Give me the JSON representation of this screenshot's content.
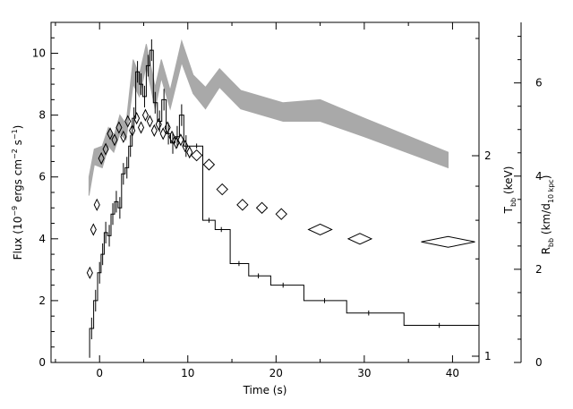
{
  "chart_data": {
    "type": "line",
    "title": "",
    "xlabel": "Time (s)",
    "xlim": [
      -5.5,
      43
    ],
    "x_ticks": [
      0,
      10,
      20,
      30,
      40
    ],
    "y_left": {
      "label_parts": [
        "Flux (10",
        "−9",
        " ergs cm",
        "−2",
        " s",
        "−1",
        ")"
      ],
      "lim": [
        0,
        11
      ],
      "ticks": [
        0,
        2,
        4,
        6,
        8,
        10
      ]
    },
    "y_mid": {
      "label_main": "T",
      "label_sub": "bb",
      "label_rest": " (keV)",
      "scale": "log",
      "ticks": [
        1,
        2
      ],
      "tick_labels": [
        "1",
        "2"
      ]
    },
    "y_right": {
      "label_main": "R",
      "label_sub": "bb",
      "label_rest1": " (km/d",
      "label_sub2": "10 kpc",
      "label_rest2": ")",
      "lim": [
        0,
        7.3
      ],
      "ticks": [
        0,
        2,
        4,
        6
      ]
    },
    "series": [
      {
        "style": "step-errorbar",
        "color": "#000000",
        "points": [
          {
            "t": -0.9,
            "flux": 1.1
          },
          {
            "t": -0.45,
            "flux": 2.0
          },
          {
            "t": 0.0,
            "flux": 2.9
          },
          {
            "t": 0.35,
            "flux": 3.5
          },
          {
            "t": 0.7,
            "flux": 4.2
          },
          {
            "t": 1.1,
            "flux": 4.1
          },
          {
            "t": 1.5,
            "flux": 4.8
          },
          {
            "t": 1.9,
            "flux": 5.2
          },
          {
            "t": 2.3,
            "flux": 5.0
          },
          {
            "t": 2.7,
            "flux": 6.1
          },
          {
            "t": 3.1,
            "flux": 6.3
          },
          {
            "t": 3.5,
            "flux": 7.0
          },
          {
            "t": 3.9,
            "flux": 7.9
          },
          {
            "t": 4.3,
            "flux": 9.4
          },
          {
            "t": 4.7,
            "flux": 9.0
          },
          {
            "t": 5.1,
            "flux": 8.6
          },
          {
            "t": 5.5,
            "flux": 9.6
          },
          {
            "t": 5.9,
            "flux": 10.1
          },
          {
            "t": 6.3,
            "flux": 8.4
          },
          {
            "t": 6.8,
            "flux": 7.8
          },
          {
            "t": 7.3,
            "flux": 8.5
          },
          {
            "t": 7.8,
            "flux": 7.4
          },
          {
            "t": 8.3,
            "flux": 7.1
          },
          {
            "t": 8.8,
            "flux": 7.3
          },
          {
            "t": 9.3,
            "flux": 8.0
          },
          {
            "t": 9.8,
            "flux": 7.0
          },
          {
            "t": 11.0,
            "flux": 7.0
          },
          {
            "t": 12.4,
            "flux": 4.6
          },
          {
            "t": 13.8,
            "flux": 4.3
          },
          {
            "t": 15.8,
            "flux": 3.2
          },
          {
            "t": 18.0,
            "flux": 2.8
          },
          {
            "t": 20.8,
            "flux": 2.5
          },
          {
            "t": 25.5,
            "flux": 2.0
          },
          {
            "t": 30.5,
            "flux": 1.6
          },
          {
            "t": 38.5,
            "flux": 1.2
          }
        ]
      },
      {
        "style": "diamond",
        "color": "#000000",
        "points": [
          {
            "t": -1.1,
            "flux": 2.9
          },
          {
            "t": -0.7,
            "flux": 4.3
          },
          {
            "t": -0.3,
            "flux": 5.1
          },
          {
            "t": 0.2,
            "flux": 6.6
          },
          {
            "t": 0.7,
            "flux": 6.9
          },
          {
            "t": 1.2,
            "flux": 7.4
          },
          {
            "t": 1.7,
            "flux": 7.2
          },
          {
            "t": 2.2,
            "flux": 7.6
          },
          {
            "t": 2.7,
            "flux": 7.3
          },
          {
            "t": 3.2,
            "flux": 7.8
          },
          {
            "t": 3.7,
            "flux": 7.5
          },
          {
            "t": 4.2,
            "flux": 7.9
          },
          {
            "t": 4.7,
            "flux": 7.6
          },
          {
            "t": 5.2,
            "flux": 8.0
          },
          {
            "t": 5.7,
            "flux": 7.8
          },
          {
            "t": 6.2,
            "flux": 7.5
          },
          {
            "t": 6.7,
            "flux": 7.7
          },
          {
            "t": 7.2,
            "flux": 7.4
          },
          {
            "t": 7.7,
            "flux": 7.6
          },
          {
            "t": 8.2,
            "flux": 7.3
          },
          {
            "t": 8.7,
            "flux": 7.1
          },
          {
            "t": 9.2,
            "flux": 7.2
          },
          {
            "t": 9.7,
            "flux": 7.0
          },
          {
            "t": 10.2,
            "flux": 6.8
          },
          {
            "t": 11.0,
            "flux": 6.7
          },
          {
            "t": 12.4,
            "flux": 6.4
          },
          {
            "t": 13.9,
            "flux": 5.6
          },
          {
            "t": 16.2,
            "flux": 5.1
          },
          {
            "t": 18.4,
            "flux": 5.0
          },
          {
            "t": 20.6,
            "flux": 4.8
          },
          {
            "t": 25.0,
            "flux": 4.3
          },
          {
            "t": 29.5,
            "flux": 4.0
          },
          {
            "t": 39.5,
            "flux": 3.9
          }
        ]
      },
      {
        "style": "band",
        "color": "#a9a9a9",
        "points": [
          {
            "t": -1.2,
            "lo": 5.4,
            "hi": 6.0
          },
          {
            "t": -0.6,
            "lo": 6.4,
            "hi": 6.9
          },
          {
            "t": 0.3,
            "lo": 6.3,
            "hi": 7.0
          },
          {
            "t": 1.0,
            "lo": 7.0,
            "hi": 7.6
          },
          {
            "t": 1.6,
            "lo": 6.8,
            "hi": 7.3
          },
          {
            "t": 2.3,
            "lo": 7.4,
            "hi": 8.0
          },
          {
            "t": 3.0,
            "lo": 7.2,
            "hi": 7.7
          },
          {
            "t": 3.8,
            "lo": 9.0,
            "hi": 9.8
          },
          {
            "t": 4.5,
            "lo": 8.6,
            "hi": 9.3
          },
          {
            "t": 5.3,
            "lo": 9.6,
            "hi": 10.3
          },
          {
            "t": 6.3,
            "lo": 8.2,
            "hi": 8.9
          },
          {
            "t": 7.0,
            "lo": 9.2,
            "hi": 9.8
          },
          {
            "t": 8.0,
            "lo": 8.2,
            "hi": 8.8
          },
          {
            "t": 9.3,
            "lo": 9.7,
            "hi": 10.4
          },
          {
            "t": 10.6,
            "lo": 8.7,
            "hi": 9.3
          },
          {
            "t": 12.0,
            "lo": 8.2,
            "hi": 8.9
          },
          {
            "t": 13.6,
            "lo": 8.9,
            "hi": 9.5
          },
          {
            "t": 16.0,
            "lo": 8.2,
            "hi": 8.8
          },
          {
            "t": 20.8,
            "lo": 7.8,
            "hi": 8.4
          },
          {
            "t": 25.0,
            "lo": 7.8,
            "hi": 8.5
          },
          {
            "t": 30.0,
            "lo": 7.3,
            "hi": 7.9
          },
          {
            "t": 39.5,
            "lo": 6.3,
            "hi": 6.8
          }
        ]
      }
    ],
    "grid": false,
    "legend": "none"
  }
}
